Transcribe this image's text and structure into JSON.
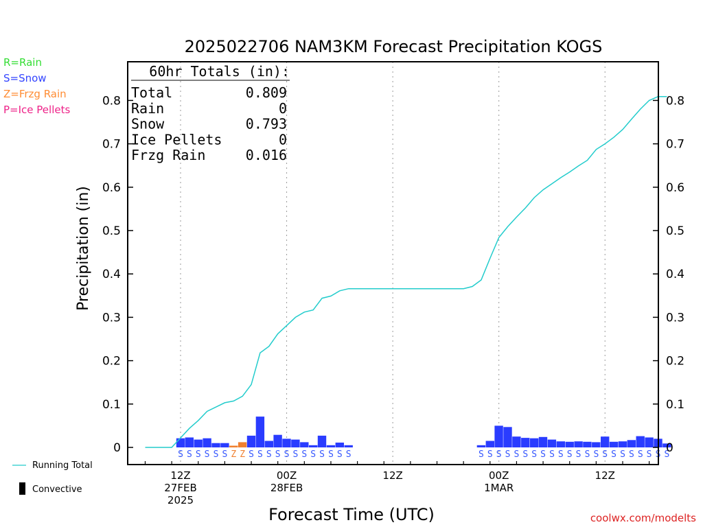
{
  "chart_data": {
    "type": "bar",
    "title": "2025022706 NAM3KM Forecast Precipitation KOGS",
    "xlabel": "Forecast Time (UTC)",
    "ylabel": "Precipitation (in)",
    "ylim": [
      -0.04,
      0.895
    ],
    "yticks": [
      0,
      0.1,
      0.2,
      0.3,
      0.4,
      0.5,
      0.6,
      0.7,
      0.8
    ],
    "ytick_labels": [
      "0",
      "0.1",
      "0.2",
      "0.3",
      "0.4",
      "0.5",
      "0.6",
      "0.7",
      "0.8"
    ],
    "xlim": [
      7,
      67
    ],
    "xticks": [
      {
        "x": 12,
        "labels": [
          "12Z",
          "27FEB",
          "2025"
        ]
      },
      {
        "x": 24,
        "labels": [
          "00Z",
          "28FEB"
        ]
      },
      {
        "x": 36,
        "labels": [
          "12Z"
        ]
      },
      {
        "x": 48,
        "labels": [
          "00Z",
          "1MAR"
        ]
      },
      {
        "x": 60,
        "labels": [
          "12Z"
        ]
      }
    ],
    "grid": "vertical-dotted",
    "legend_left": [
      {
        "label": "R=Rain",
        "color": "#33dd33"
      },
      {
        "label": "S=Snow",
        "color": "#3344ff"
      },
      {
        "label": "Z=Frzg Rain",
        "color": "#ff8c33"
      },
      {
        "label": "P=Ice Pellets",
        "color": "#ee2288"
      }
    ],
    "legend_bottom": [
      {
        "label": "Running Total",
        "kind": "line",
        "color": "#22cccc"
      },
      {
        "label": "Convective",
        "kind": "bar",
        "color": "#000000"
      }
    ],
    "totals": {
      "header": "60hr Totals (in):",
      "rows": [
        {
          "label": "Total",
          "value": "0.809"
        },
        {
          "label": "Rain",
          "value": "0"
        },
        {
          "label": "Snow",
          "value": "0.793"
        },
        {
          "label": "Ice Pellets",
          "value": "0"
        },
        {
          "label": "Frzg Rain",
          "value": "0.016"
        }
      ]
    },
    "series": [
      {
        "name": "Running Total",
        "kind": "line",
        "color": "#22cccc",
        "x": [
          8,
          9,
          10,
          11,
          12,
          13,
          14,
          15,
          16,
          17,
          18,
          19,
          20,
          21,
          22,
          23,
          24,
          25,
          26,
          27,
          28,
          29,
          30,
          31,
          32,
          33,
          34,
          35,
          36,
          37,
          38,
          39,
          40,
          41,
          42,
          43,
          44,
          45,
          46,
          47,
          48,
          49,
          50,
          51,
          52,
          53,
          54,
          55,
          56,
          57,
          58,
          59,
          60,
          61,
          62,
          63,
          64,
          65,
          66,
          67
        ],
        "y": [
          0,
          0,
          0,
          0,
          0.022,
          0.044,
          0.062,
          0.083,
          0.093,
          0.103,
          0.107,
          0.118,
          0.145,
          0.218,
          0.233,
          0.262,
          0.281,
          0.3,
          0.312,
          0.317,
          0.344,
          0.349,
          0.361,
          0.366,
          0.366,
          0.366,
          0.366,
          0.366,
          0.366,
          0.366,
          0.366,
          0.366,
          0.366,
          0.366,
          0.366,
          0.366,
          0.366,
          0.371,
          0.386,
          0.436,
          0.484,
          0.509,
          0.531,
          0.552,
          0.576,
          0.594,
          0.608,
          0.622,
          0.635,
          0.649,
          0.662,
          0.687,
          0.7,
          0.715,
          0.733,
          0.757,
          0.78,
          0.8,
          0.809,
          0.809
        ]
      }
    ],
    "bars": {
      "x": [
        12,
        13,
        14,
        15,
        16,
        17,
        18,
        19,
        20,
        21,
        22,
        23,
        24,
        25,
        26,
        27,
        28,
        29,
        30,
        31,
        46,
        47,
        48,
        49,
        50,
        51,
        52,
        53,
        54,
        55,
        56,
        57,
        58,
        59,
        60,
        61,
        62,
        63,
        64,
        65,
        66,
        67
      ],
      "values": [
        0.021,
        0.023,
        0.018,
        0.021,
        0.01,
        0.01,
        0.004,
        0.012,
        0.027,
        0.071,
        0.015,
        0.029,
        0.02,
        0.018,
        0.012,
        0.005,
        0.027,
        0.005,
        0.011,
        0.005,
        0.005,
        0.015,
        0.05,
        0.047,
        0.025,
        0.022,
        0.021,
        0.024,
        0.018,
        0.014,
        0.013,
        0.014,
        0.013,
        0.012,
        0.025,
        0.013,
        0.014,
        0.017,
        0.026,
        0.023,
        0.02,
        0.009
      ],
      "ptype": [
        "S",
        "S",
        "S",
        "S",
        "S",
        "S",
        "Z",
        "Z",
        "S",
        "S",
        "S",
        "S",
        "S",
        "S",
        "S",
        "S",
        "S",
        "S",
        "S",
        "S",
        "S",
        "S",
        "S",
        "S",
        "S",
        "S",
        "S",
        "S",
        "S",
        "S",
        "S",
        "S",
        "S",
        "S",
        "S",
        "S",
        "S",
        "S",
        "S",
        "S",
        "S",
        "S"
      ]
    },
    "ptype_colors": {
      "S": "#2a3cff",
      "Z": "#f08030"
    },
    "ptype_text_colors": {
      "S": "#3355ff",
      "Z": "#f08030"
    }
  },
  "credit": "coolwx.com/modelts"
}
